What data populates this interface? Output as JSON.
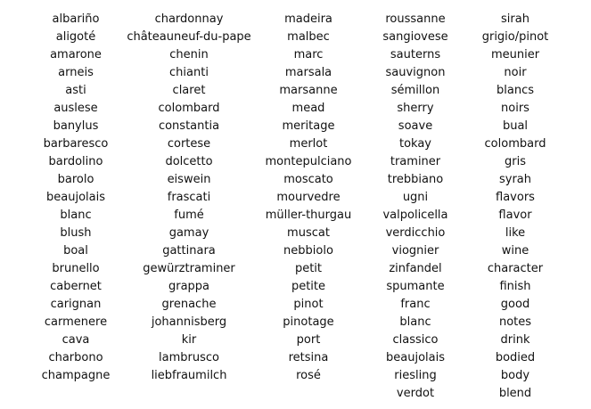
{
  "columns": [
    {
      "words": [
        "albariño",
        "aligoté",
        "amarone",
        "arneis",
        "asti",
        "auslese",
        "banylus",
        "barbaresco",
        "bardolino",
        "barolo",
        "beaujolais",
        "blanc",
        "blush",
        "boal",
        "brunello",
        "cabernet",
        "carignan",
        "carmenere",
        "cava",
        "charbono",
        "champagne"
      ]
    },
    {
      "words": [
        "chardonnay",
        "châteauneuf-du-pape",
        "chenin",
        "chianti",
        "claret",
        "colombard",
        "constantia",
        "cortese",
        "dolcetto",
        "eiswein",
        "frascati",
        "fumé",
        "gamay",
        "gattinara",
        "gewürztraminer",
        "grappa",
        "grenache",
        "johannisberg",
        "kir",
        "lambrusco",
        "liebfraumilch"
      ]
    },
    {
      "words": [
        "madeira",
        "malbec",
        "marc",
        "marsala",
        "marsanne",
        "mead",
        "meritage",
        "merlot",
        "montepulciano",
        "moscato",
        "mourvedre",
        "müller-thurgau",
        "muscat",
        "nebbiolo",
        "petit",
        "petite",
        "pinot",
        "pinotage",
        "port",
        "retsina",
        "rosé"
      ]
    },
    {
      "words": [
        "roussanne",
        "sangiovese",
        "sauterns",
        "sauvignon",
        "sémillon",
        "sherry",
        "soave",
        "tokay",
        "traminer",
        "trebbiano",
        "ugni",
        "valpolicella",
        "verdicchio",
        "viognier",
        "zinfandel",
        "spumante",
        "franc",
        "blanc",
        "classico",
        "beaujolais",
        "riesling",
        "verdot"
      ]
    },
    {
      "words": [
        "sirah",
        "grigio/pinot",
        "meunier",
        "noir",
        "blancs",
        "noirs",
        "bual",
        "colombard",
        "gris",
        "syrah",
        "flavors",
        "flavor",
        "like",
        "wine",
        "character",
        "finish",
        "good",
        "notes",
        "drink",
        "bodied",
        "body",
        "blend"
      ]
    }
  ]
}
